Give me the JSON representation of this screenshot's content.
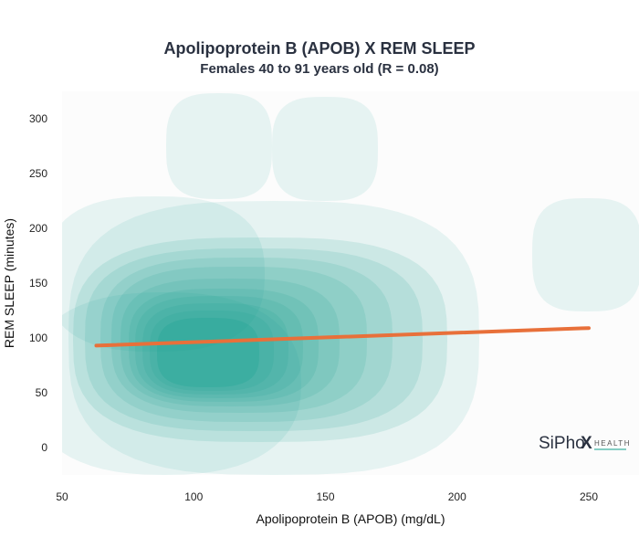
{
  "chart_data": {
    "type": "density_contour",
    "title": "Apolipoprotein B (APOB) X REM SLEEP",
    "subtitle": "Females 40 to 91 years old (R = 0.08)",
    "xlabel": "Apolipoprotein B (APOB) (mg/dL)",
    "ylabel": "REM SLEEP (minutes)",
    "xlim": [
      50,
      260
    ],
    "ylim": [
      -25,
      325
    ],
    "x_ticks": [
      "50",
      "100",
      "150",
      "200",
      "250"
    ],
    "y_ticks": [
      "0",
      "50",
      "100",
      "150",
      "200",
      "250",
      "300"
    ],
    "grid": false,
    "contour_color": "#0fa08c",
    "trendline": {
      "color": "#e8703a",
      "x": [
        63,
        250
      ],
      "y": [
        93,
        109
      ]
    }
  },
  "logo": {
    "main": "SiPho",
    "x_mark": "X",
    "sub": "HEALTH",
    "accent": "#0fa08c"
  }
}
